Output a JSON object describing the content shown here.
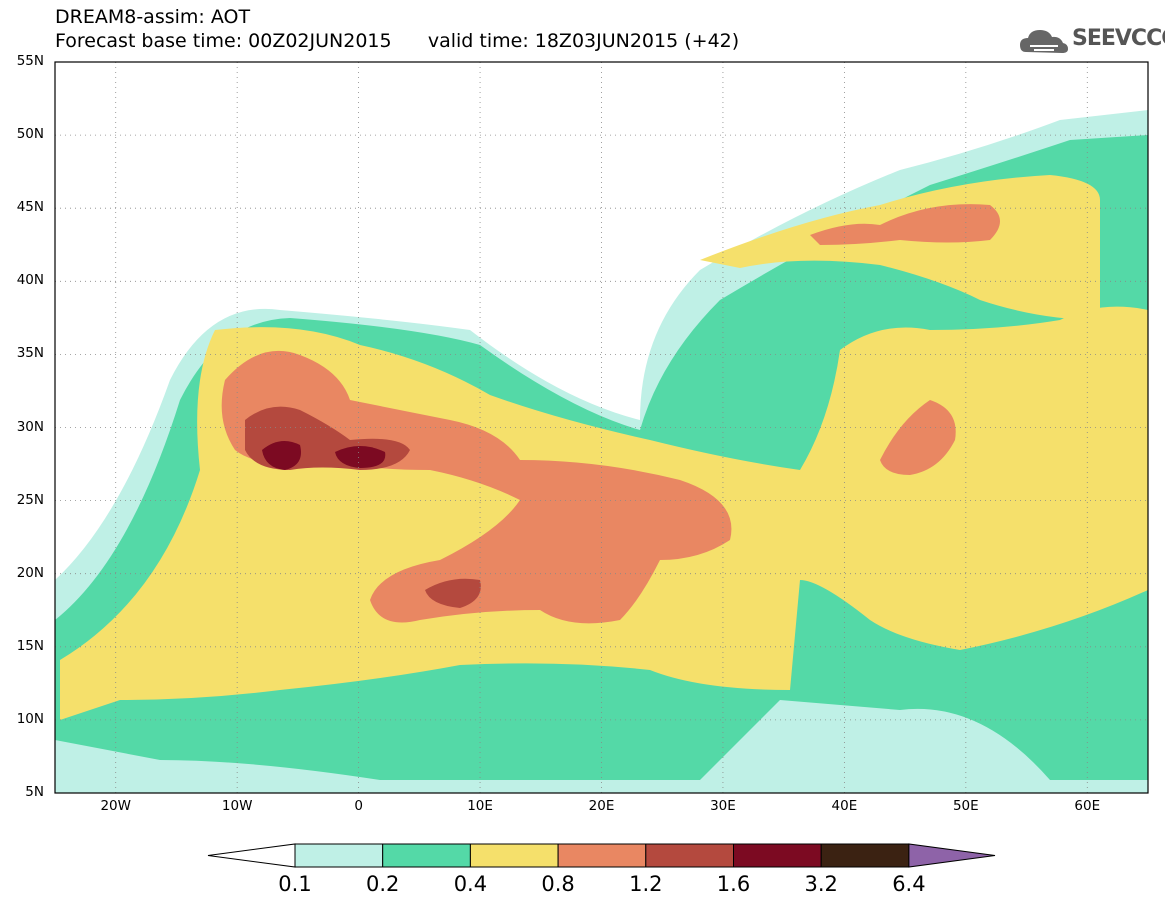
{
  "title": {
    "line1": "DREAM8-assim: AOT",
    "base_time_label": "Forecast base time: 00Z02JUN2015",
    "valid_time_label": "valid time: 18Z03JUN2015 (+42)"
  },
  "logo": {
    "text": "SEEVCCC",
    "icon": "cloud-icon"
  },
  "map": {
    "projection": "lat-lon",
    "lon_range": [
      -25,
      65
    ],
    "lat_range": [
      5,
      55
    ],
    "lat_labels": [
      "55N",
      "50N",
      "45N",
      "40N",
      "35N",
      "30N",
      "25N",
      "20N",
      "15N",
      "10N",
      "5N"
    ],
    "lon_labels": [
      "20W",
      "10W",
      "0",
      "10E",
      "20E",
      "30E",
      "40E",
      "50E",
      "60E"
    ],
    "grid": "dotted"
  },
  "colorbar": {
    "levels": [
      "0.1",
      "0.2",
      "0.4",
      "0.8",
      "1.2",
      "1.6",
      "3.2",
      "6.4"
    ],
    "colors": [
      "#bff0e6",
      "#54d9a7",
      "#f5e06b",
      "#e98762",
      "#b4493e",
      "#7c0a22",
      "#3b2212",
      "#8e63a8"
    ],
    "below_color": "#ffffff",
    "above_color": "#8e63a8"
  }
}
